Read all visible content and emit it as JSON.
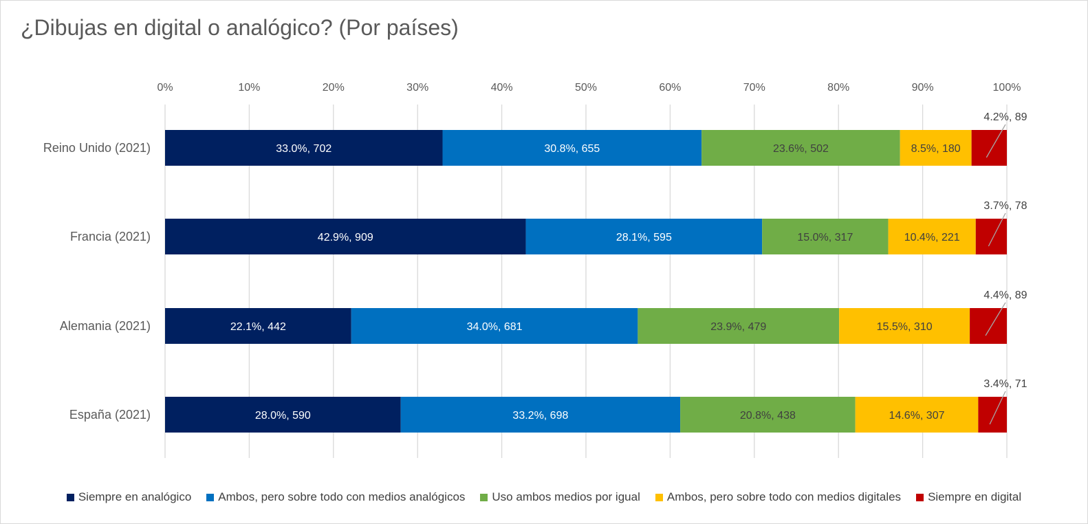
{
  "title": "¿Dibujas en digital o analógico? (Por países)",
  "chart_data": {
    "type": "bar",
    "orientation": "horizontal",
    "stacked": "percent",
    "title": "¿Dibujas en digital o analógico? (Por países)",
    "xlabel": "",
    "ylabel": "",
    "xlim": [
      0,
      100
    ],
    "x_ticks": [
      "0%",
      "10%",
      "20%",
      "30%",
      "40%",
      "50%",
      "60%",
      "70%",
      "80%",
      "90%",
      "100%"
    ],
    "grid": "vertical",
    "legend_position": "bottom",
    "categories": [
      "Reino Unido (2021)",
      "Francia (2021)",
      "Alemania (2021)",
      "España (2021)"
    ],
    "series": [
      {
        "name": "Siempre en analógico",
        "color": "#002060",
        "values": [
          33.0,
          42.9,
          22.1,
          28.0
        ],
        "counts": [
          702,
          909,
          442,
          590
        ],
        "labels": [
          "33.0%, 702",
          "42.9%, 909",
          "22.1%, 442",
          "28.0%, 590"
        ],
        "label_color": "#ffffff"
      },
      {
        "name": "Ambos, pero sobre todo con medios analógicos",
        "color": "#0070c0",
        "values": [
          30.8,
          28.1,
          34.0,
          33.2
        ],
        "counts": [
          655,
          595,
          681,
          698
        ],
        "labels": [
          "30.8%, 655",
          "28.1%, 595",
          "34.0%, 681",
          "33.2%, 698"
        ],
        "label_color": "#ffffff"
      },
      {
        "name": "Uso ambos medios por igual",
        "color": "#70ad47",
        "values": [
          23.6,
          15.0,
          23.9,
          20.8
        ],
        "counts": [
          502,
          317,
          479,
          438
        ],
        "labels": [
          "23.6%, 502",
          "15.0%, 317",
          "23.9%, 479",
          "20.8%, 438"
        ],
        "label_color": "#404040"
      },
      {
        "name": "Ambos, pero sobre todo con medios digitales",
        "color": "#ffc000",
        "values": [
          8.5,
          10.4,
          15.5,
          14.6
        ],
        "counts": [
          180,
          221,
          310,
          307
        ],
        "labels": [
          "8.5%, 180",
          "10.4%, 221",
          "15.5%, 310",
          "14.6%, 307"
        ],
        "label_color": "#404040"
      },
      {
        "name": "Siempre en digital",
        "color": "#c00000",
        "values": [
          4.2,
          3.7,
          4.4,
          3.4
        ],
        "counts": [
          89,
          78,
          89,
          71
        ],
        "labels": [
          "4.2%, 89",
          "3.7%, 78",
          "4.4%, 89",
          "3.4%, 71"
        ],
        "label_color": "#404040"
      }
    ]
  }
}
